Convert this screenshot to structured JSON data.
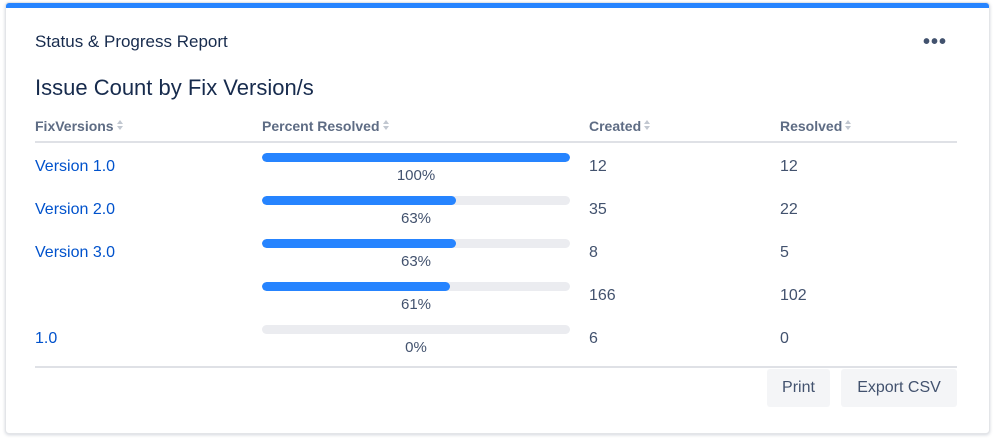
{
  "gadget": {
    "title": "Status & Progress Report",
    "more_icon": "more-horizontal-icon",
    "accent_color": "#2684ff"
  },
  "report": {
    "title": "Issue Count by Fix Version/s"
  },
  "table": {
    "columns": [
      "FixVersions",
      "Percent Resolved",
      "Created",
      "Resolved"
    ],
    "rows": [
      {
        "version": "Version 1.0",
        "percent": 100,
        "percent_label": "100%",
        "created": "12",
        "resolved": "12"
      },
      {
        "version": "Version 2.0",
        "percent": 63,
        "percent_label": "63%",
        "created": "35",
        "resolved": "22"
      },
      {
        "version": "Version 3.0",
        "percent": 63,
        "percent_label": "63%",
        "created": "8",
        "resolved": "5"
      },
      {
        "version": "",
        "percent": 61,
        "percent_label": "61%",
        "created": "166",
        "resolved": "102"
      },
      {
        "version": "1.0",
        "percent": 0,
        "percent_label": "0%",
        "created": "6",
        "resolved": "0"
      }
    ]
  },
  "actions": {
    "print_label": "Print",
    "export_label": "Export CSV"
  }
}
